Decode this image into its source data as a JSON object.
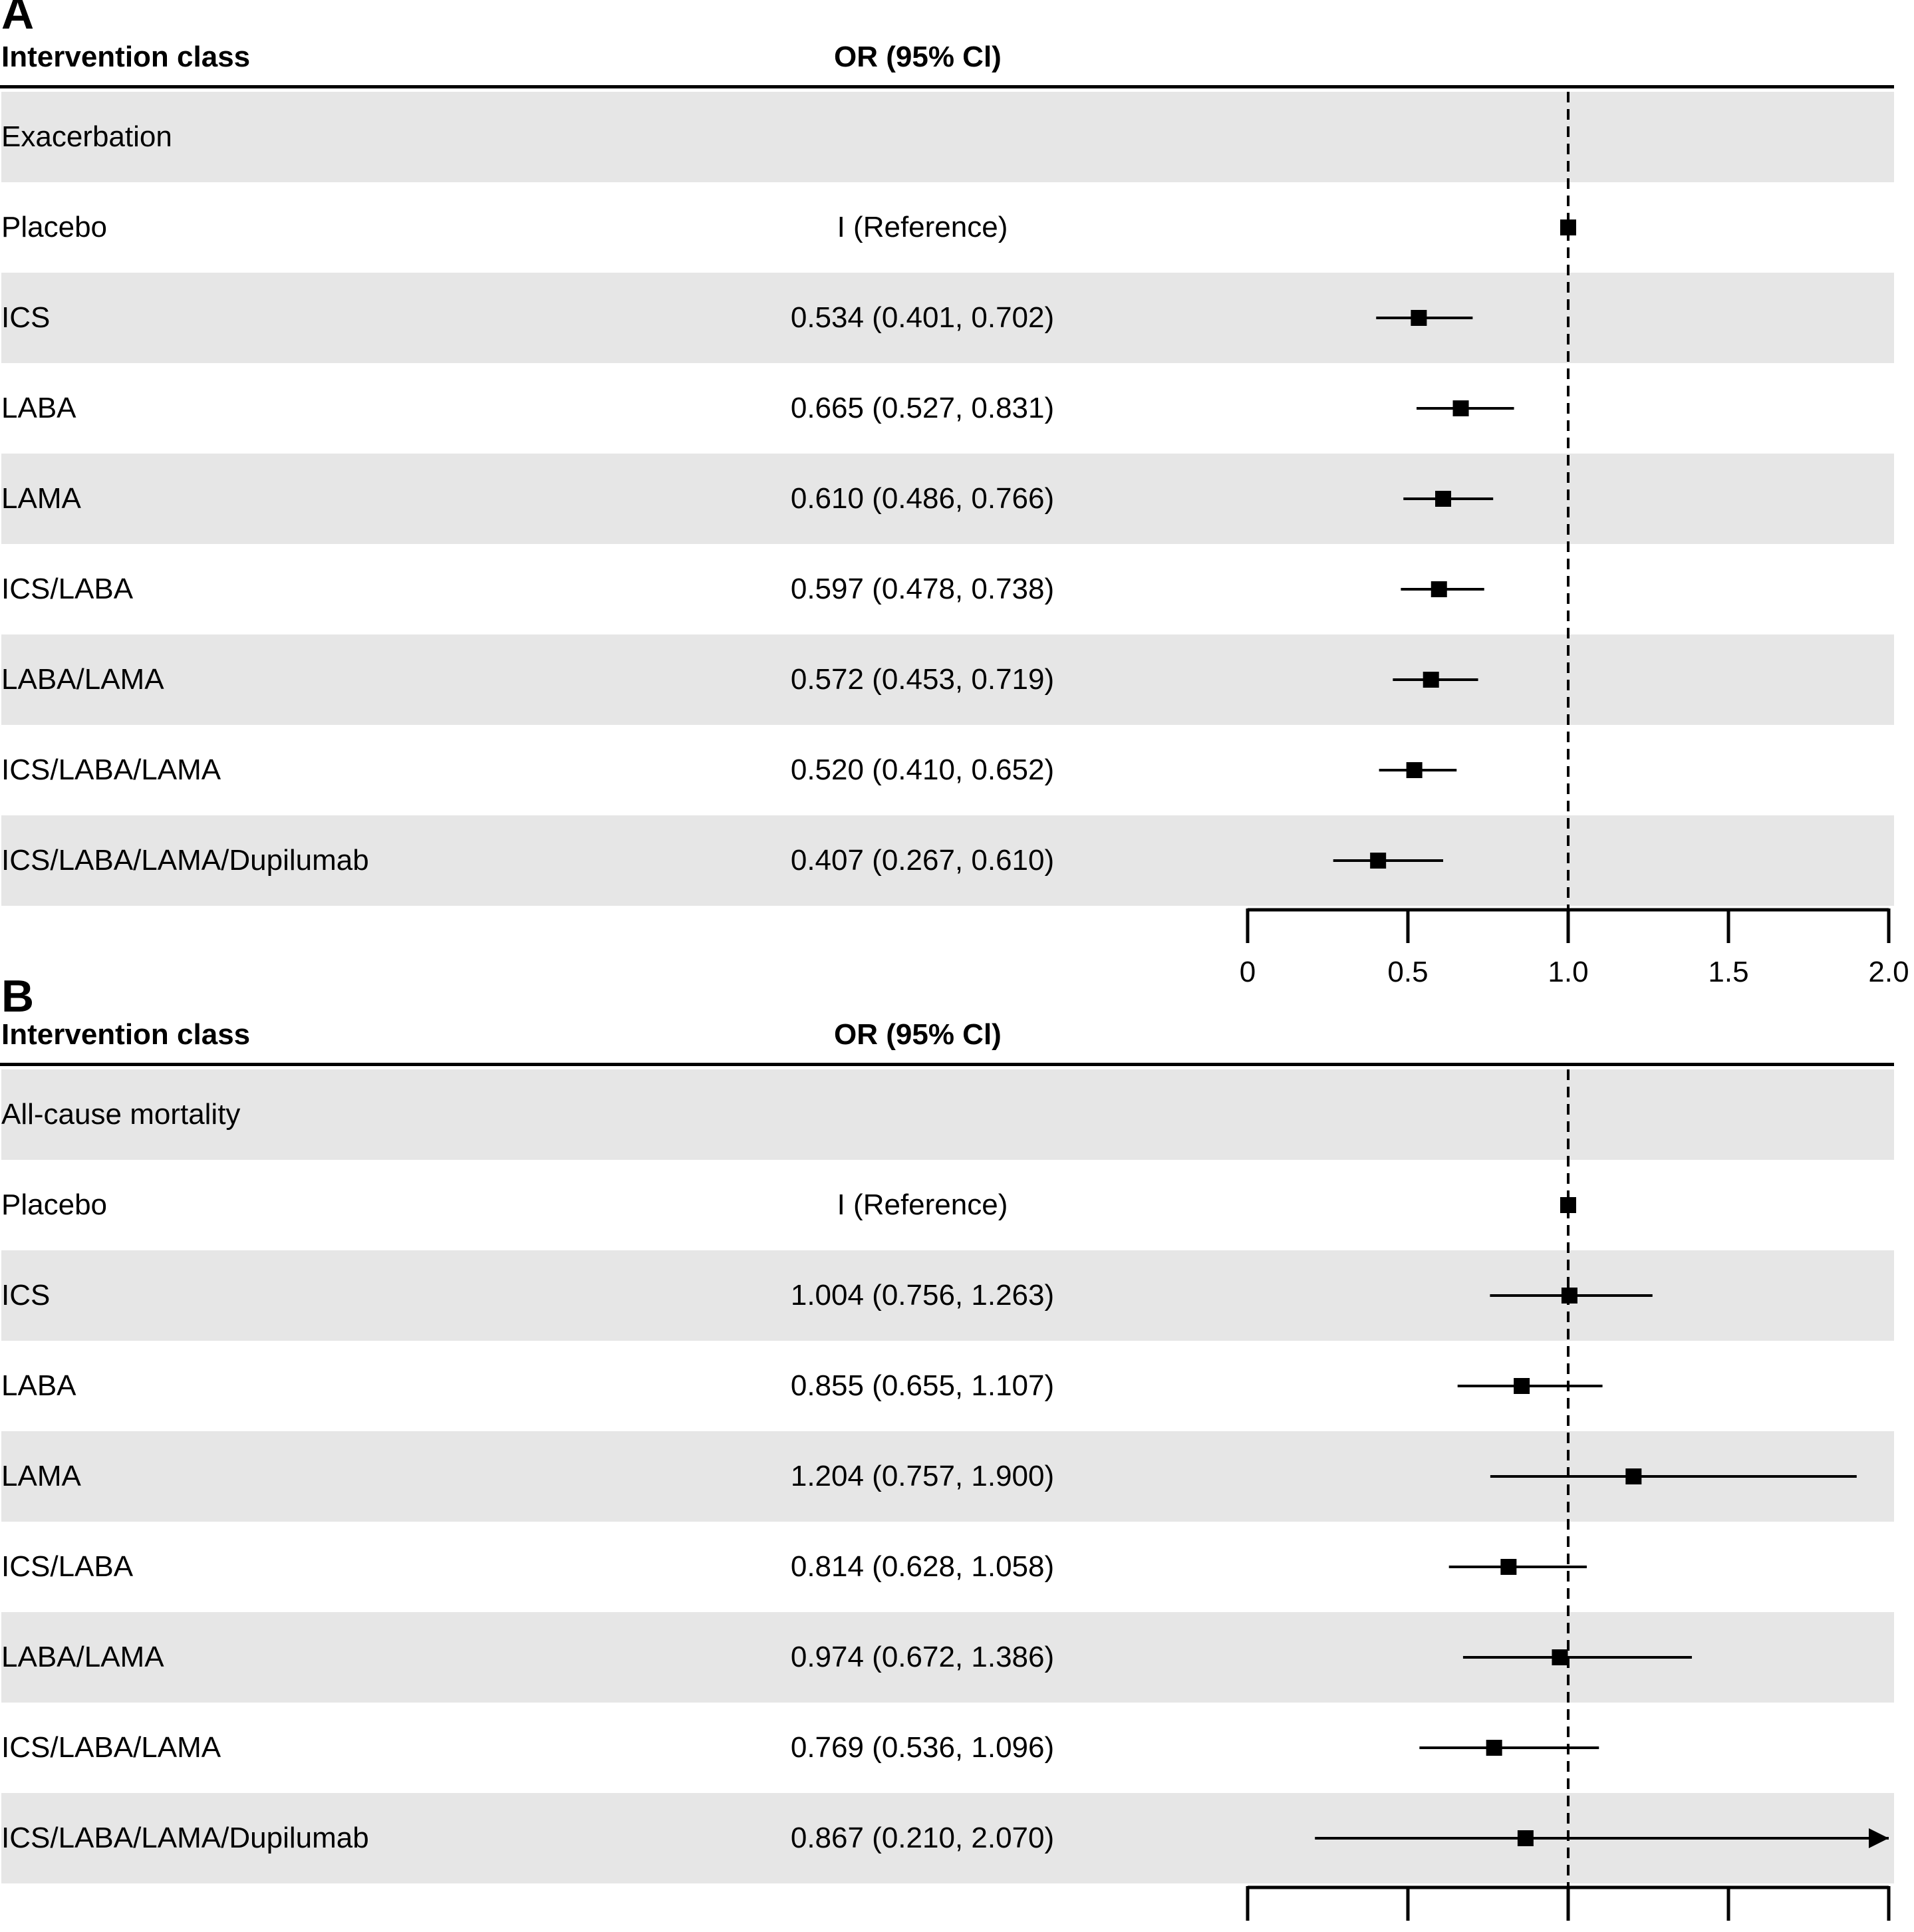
{
  "chart_data": [
    {
      "type": "forest",
      "panel_label": "A",
      "column_headers": {
        "label": "Intervention class",
        "estimate": "OR (95% Cl)"
      },
      "section": "Exacerbation",
      "reference_value": 1.0,
      "xlim": [
        0,
        2.0
      ],
      "xticks": [
        "0",
        "0.5",
        "1.0",
        "1.5",
        "2.0"
      ],
      "rows": [
        {
          "label": "Placebo",
          "text": "I (Reference)",
          "or": 1.0,
          "lower": 1.0,
          "upper": 1.0
        },
        {
          "label": "ICS",
          "text": "0.534 (0.401, 0.702)",
          "or": 0.534,
          "lower": 0.401,
          "upper": 0.702
        },
        {
          "label": "LABA",
          "text": "0.665 (0.527, 0.831)",
          "or": 0.665,
          "lower": 0.527,
          "upper": 0.831
        },
        {
          "label": "LAMA",
          "text": "0.610 (0.486, 0.766)",
          "or": 0.61,
          "lower": 0.486,
          "upper": 0.766
        },
        {
          "label": "ICS/LABA",
          "text": "0.597 (0.478, 0.738)",
          "or": 0.597,
          "lower": 0.478,
          "upper": 0.738
        },
        {
          "label": "LABA/LAMA",
          "text": "0.572 (0.453, 0.719)",
          "or": 0.572,
          "lower": 0.453,
          "upper": 0.719
        },
        {
          "label": "ICS/LABA/LAMA",
          "text": "0.520 (0.410, 0.652)",
          "or": 0.52,
          "lower": 0.41,
          "upper": 0.652
        },
        {
          "label": "ICS/LABA/LAMA/Dupilumab",
          "text": "0.407 (0.267, 0.610)",
          "or": 0.407,
          "lower": 0.267,
          "upper": 0.61
        }
      ]
    },
    {
      "type": "forest",
      "panel_label": "B",
      "column_headers": {
        "label": "Intervention class",
        "estimate": "OR (95% Cl)"
      },
      "section": "All-cause mortality",
      "reference_value": 1.0,
      "xlim": [
        0,
        2.0
      ],
      "xticks": [
        "0",
        "0.5",
        "1.0",
        "1.5",
        "2.0"
      ],
      "rows": [
        {
          "label": "Placebo",
          "text": "I (Reference)",
          "or": 1.0,
          "lower": 1.0,
          "upper": 1.0
        },
        {
          "label": "ICS",
          "text": "1.004 (0.756, 1.263)",
          "or": 1.004,
          "lower": 0.756,
          "upper": 1.263
        },
        {
          "label": "LABA",
          "text": "0.855 (0.655, 1.107)",
          "or": 0.855,
          "lower": 0.655,
          "upper": 1.107
        },
        {
          "label": "LAMA",
          "text": "1.204 (0.757, 1.900)",
          "or": 1.204,
          "lower": 0.757,
          "upper": 1.9
        },
        {
          "label": "ICS/LABA",
          "text": "0.814 (0.628, 1.058)",
          "or": 0.814,
          "lower": 0.628,
          "upper": 1.058
        },
        {
          "label": "LABA/LAMA",
          "text": "0.974 (0.672, 1.386)",
          "or": 0.974,
          "lower": 0.672,
          "upper": 1.386
        },
        {
          "label": "ICS/LABA/LAMA",
          "text": "0.769 (0.536, 1.096)",
          "or": 0.769,
          "lower": 0.536,
          "upper": 1.096
        },
        {
          "label": "ICS/LABA/LAMA/Dupilumab",
          "text": "0.867 (0.210, 2.070)",
          "or": 0.867,
          "lower": 0.21,
          "upper": 2.07,
          "upper_truncated": true
        }
      ]
    }
  ]
}
